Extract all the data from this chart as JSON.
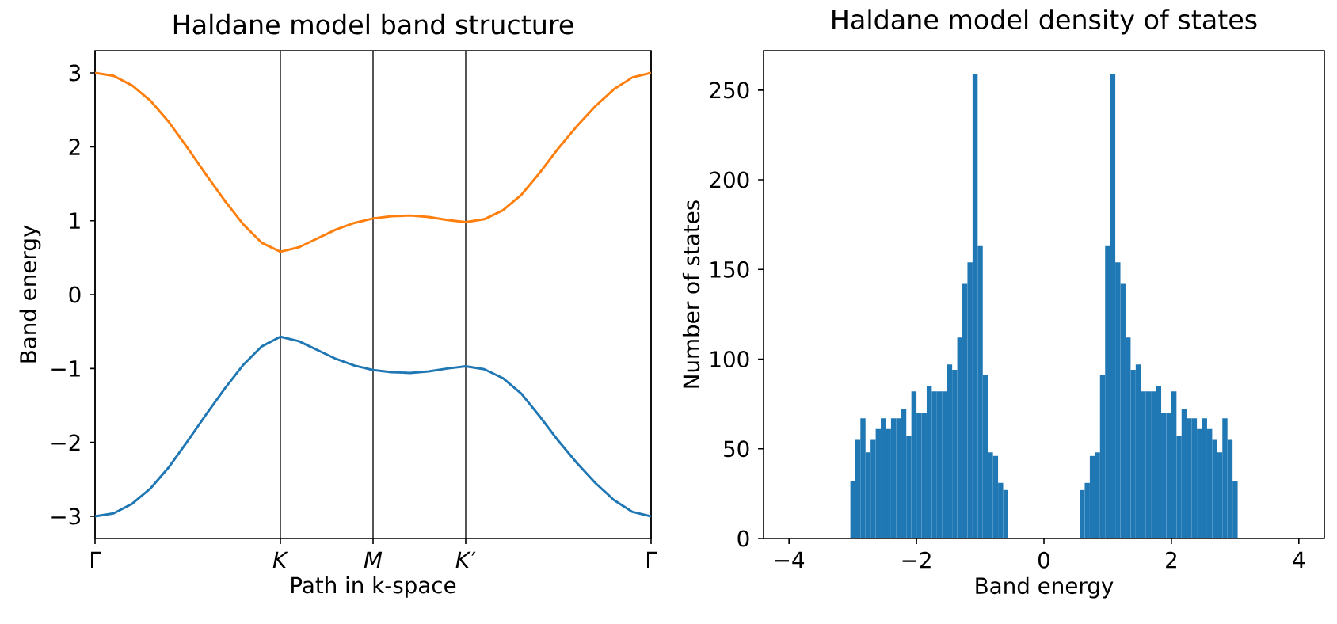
{
  "chart_data": [
    {
      "type": "line",
      "title": "Haldane model band structure",
      "xlabel": "Path in k-space",
      "ylabel": "Band energy",
      "categories": [
        "Γ",
        null,
        null,
        null,
        null,
        null,
        null,
        null,
        null,
        null,
        "*K*",
        null,
        null,
        null,
        null,
        "*M*",
        null,
        null,
        null,
        null,
        "*K*′",
        null,
        null,
        null,
        null,
        null,
        null,
        null,
        null,
        null,
        "Γ"
      ],
      "grid": "x",
      "series": [
        {
          "color": "#1f77b4",
          "values": [
            -3.0,
            -2.96,
            -2.83,
            -2.62,
            -2.33,
            -1.98,
            -1.62,
            -1.27,
            -0.95,
            -0.7,
            -0.57,
            -0.63,
            -0.75,
            -0.87,
            -0.96,
            -1.02,
            -1.05,
            -1.06,
            -1.04,
            -1.0,
            -0.97,
            -1.01,
            -1.13,
            -1.34,
            -1.65,
            -1.98,
            -2.28,
            -2.55,
            -2.78,
            -2.94,
            -3.0
          ]
        },
        {
          "color": "#ff7f0e",
          "values": [
            3.0,
            2.96,
            2.83,
            2.62,
            2.33,
            1.98,
            1.62,
            1.27,
            0.95,
            0.7,
            0.58,
            0.64,
            0.76,
            0.88,
            0.97,
            1.03,
            1.06,
            1.07,
            1.05,
            1.01,
            0.98,
            1.02,
            1.14,
            1.35,
            1.65,
            1.98,
            2.28,
            2.55,
            2.78,
            2.94,
            3.0
          ]
        }
      ],
      "ylim": [
        -3.3,
        3.3
      ],
      "yticks": [
        {
          "value": -3,
          "label": "−3"
        },
        {
          "value": -2,
          "label": "−2"
        },
        {
          "value": -1,
          "label": "−1"
        },
        0,
        1,
        2,
        3
      ]
    },
    {
      "type": "histogram",
      "title": "Haldane model density of states",
      "xlabel": "Band energy",
      "ylabel": "Number of states",
      "color": "#1f77b4",
      "bins": [
        -3.04,
        -2.96,
        -2.88,
        -2.8,
        -2.72,
        -2.64,
        -2.56,
        -2.48,
        -2.4,
        -2.32,
        -2.24,
        -2.16,
        -2.08,
        -2.0,
        -1.92,
        -1.84,
        -1.76,
        -1.68,
        -1.6,
        -1.52,
        -1.44,
        -1.36,
        -1.28,
        -1.2,
        -1.12,
        -1.04,
        -0.96,
        -0.88,
        -0.8,
        -0.72,
        -0.64,
        -0.56,
        -0.48,
        -0.4,
        -0.32,
        -0.24,
        -0.16,
        -0.08,
        0.0,
        0.08,
        0.16,
        0.24,
        0.32,
        0.4,
        0.48,
        0.56,
        0.64,
        0.72,
        0.8,
        0.88,
        0.96,
        1.04,
        1.12,
        1.2,
        1.28,
        1.36,
        1.44,
        1.52,
        1.6,
        1.68,
        1.76,
        1.84,
        1.92,
        2.0,
        2.08,
        2.16,
        2.24,
        2.32,
        2.4,
        2.48,
        2.56,
        2.64,
        2.72,
        2.8,
        2.88,
        2.96,
        3.04
      ],
      "values": [
        32,
        55,
        67,
        48,
        55,
        61,
        67,
        61,
        67,
        67,
        72,
        57,
        82,
        70,
        70,
        85,
        82,
        82,
        82,
        97,
        94,
        112,
        142,
        154,
        259,
        163,
        91,
        48,
        46,
        31,
        27,
        0,
        0,
        0,
        0,
        0,
        0,
        0,
        0,
        0,
        0,
        0,
        0,
        0,
        0,
        27,
        31,
        46,
        48,
        91,
        163,
        259,
        154,
        142,
        112,
        94,
        97,
        82,
        82,
        82,
        85,
        70,
        70,
        82,
        57,
        72,
        67,
        67,
        61,
        67,
        61,
        55,
        48,
        67,
        55,
        32
      ],
      "xlim": [
        -4.4,
        4.4
      ],
      "ylim": [
        0,
        272
      ],
      "xticks": [
        {
          "value": -4,
          "label": "−4"
        },
        {
          "value": -2,
          "label": "−2"
        },
        0,
        2,
        4
      ],
      "yticks": [
        0,
        50,
        100,
        150,
        200,
        250
      ]
    }
  ]
}
